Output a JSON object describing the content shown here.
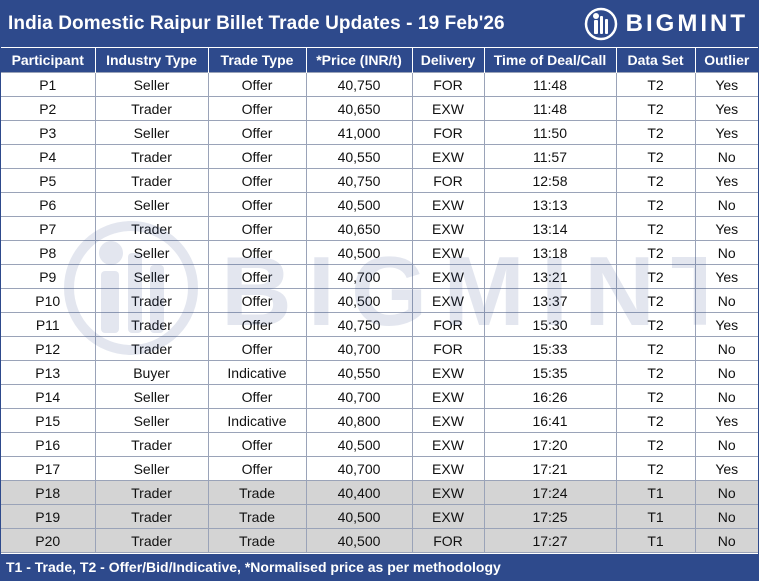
{
  "header": {
    "title": "India Domestic Raipur Billet Trade Updates - 19 Feb'26",
    "brand": "BIGMINT"
  },
  "colors": {
    "header_bg": "#2e4a8c",
    "t1_row_bg": "#d4d4d4",
    "text": "#111111"
  },
  "table": {
    "columns": [
      "Participant",
      "Industry Type",
      "Trade Type",
      "*Price (INR/t)",
      "Delivery",
      "Time of Deal/Call",
      "Data Set",
      "Outlier"
    ],
    "rows": [
      [
        "P1",
        "Seller",
        "Offer",
        "40,750",
        "FOR",
        "11:48",
        "T2",
        "Yes"
      ],
      [
        "P2",
        "Trader",
        "Offer",
        "40,650",
        "EXW",
        "11:48",
        "T2",
        "Yes"
      ],
      [
        "P3",
        "Seller",
        "Offer",
        "41,000",
        "FOR",
        "11:50",
        "T2",
        "Yes"
      ],
      [
        "P4",
        "Trader",
        "Offer",
        "40,550",
        "EXW",
        "11:57",
        "T2",
        "No"
      ],
      [
        "P5",
        "Trader",
        "Offer",
        "40,750",
        "FOR",
        "12:58",
        "T2",
        "Yes"
      ],
      [
        "P6",
        "Seller",
        "Offer",
        "40,500",
        "EXW",
        "13:13",
        "T2",
        "No"
      ],
      [
        "P7",
        "Trader",
        "Offer",
        "40,650",
        "EXW",
        "13:14",
        "T2",
        "Yes"
      ],
      [
        "P8",
        "Seller",
        "Offer",
        "40,500",
        "EXW",
        "13:18",
        "T2",
        "No"
      ],
      [
        "P9",
        "Seller",
        "Offer",
        "40,700",
        "EXW",
        "13:21",
        "T2",
        "Yes"
      ],
      [
        "P10",
        "Trader",
        "Offer",
        "40,500",
        "EXW",
        "13:37",
        "T2",
        "No"
      ],
      [
        "P11",
        "Trader",
        "Offer",
        "40,750",
        "FOR",
        "15:30",
        "T2",
        "Yes"
      ],
      [
        "P12",
        "Trader",
        "Offer",
        "40,700",
        "FOR",
        "15:33",
        "T2",
        "No"
      ],
      [
        "P13",
        "Buyer",
        "Indicative",
        "40,550",
        "EXW",
        "15:35",
        "T2",
        "No"
      ],
      [
        "P14",
        "Seller",
        "Offer",
        "40,700",
        "EXW",
        "16:26",
        "T2",
        "No"
      ],
      [
        "P15",
        "Seller",
        "Indicative",
        "40,800",
        "EXW",
        "16:41",
        "T2",
        "Yes"
      ],
      [
        "P16",
        "Trader",
        "Offer",
        "40,500",
        "EXW",
        "17:20",
        "T2",
        "No"
      ],
      [
        "P17",
        "Seller",
        "Offer",
        "40,700",
        "EXW",
        "17:21",
        "T2",
        "Yes"
      ],
      [
        "P18",
        "Trader",
        "Trade",
        "40,400",
        "EXW",
        "17:24",
        "T1",
        "No"
      ],
      [
        "P19",
        "Trader",
        "Trade",
        "40,500",
        "EXW",
        "17:25",
        "T1",
        "No"
      ],
      [
        "P20",
        "Trader",
        "Trade",
        "40,500",
        "FOR",
        "17:27",
        "T1",
        "No"
      ]
    ]
  },
  "footer": {
    "note": "T1 - Trade, T2 - Offer/Bid/Indicative, *Normalised price as per methodology"
  },
  "watermark": {
    "text": "BIGMINT",
    "icon": "bigmint-logo-icon"
  }
}
